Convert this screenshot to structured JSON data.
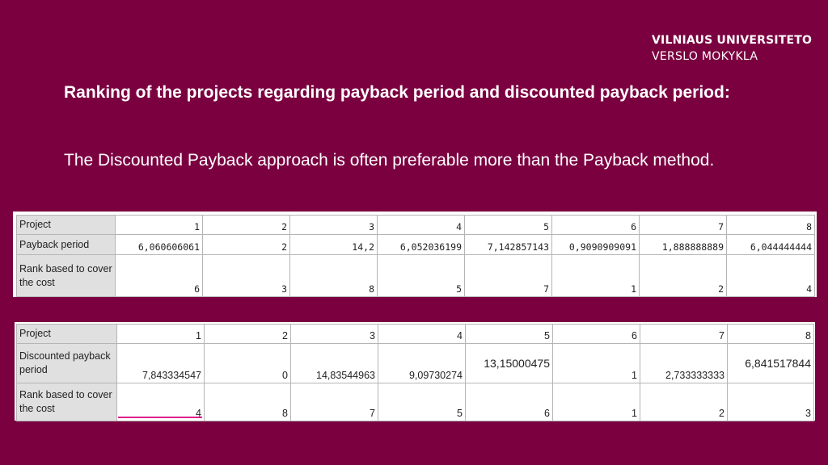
{
  "logo": {
    "line1": "VILNIAUS UNIVERSITETO",
    "line2": "VERSLO MOKYKLA"
  },
  "heading": "Ranking of the projects regarding payback period and discounted payback period:",
  "subtext": "The Discounted Payback approach is often preferable more than the Payback method.",
  "table1": {
    "rows": [
      {
        "label": "Project",
        "values": [
          "1",
          "2",
          "3",
          "4",
          "5",
          "6",
          "7",
          "8"
        ]
      },
      {
        "label": "Payback period",
        "values": [
          "6,060606061",
          "2",
          "14,2",
          "6,052036199",
          "7,142857143",
          "0,9090909091",
          "1,888888889",
          "6,044444444"
        ]
      },
      {
        "label": "Rank based to cover the cost",
        "values": [
          "6",
          "3",
          "8",
          "5",
          "7",
          "1",
          "2",
          "4"
        ]
      }
    ]
  },
  "table2": {
    "rows": [
      {
        "label": "Project",
        "values": [
          "1",
          "2",
          "3",
          "4",
          "5",
          "6",
          "7",
          "8"
        ]
      },
      {
        "label": "Discounted payback period",
        "values": [
          "7,843334547",
          "0",
          "14,83544963",
          "9,09730274",
          "13,15000475",
          "1",
          "2,733333333",
          "6,841517844"
        ]
      },
      {
        "label": "Rank based to cover the cost",
        "values": [
          "4",
          "8",
          "7",
          "5",
          "6",
          "1",
          "2",
          "3"
        ]
      }
    ]
  }
}
